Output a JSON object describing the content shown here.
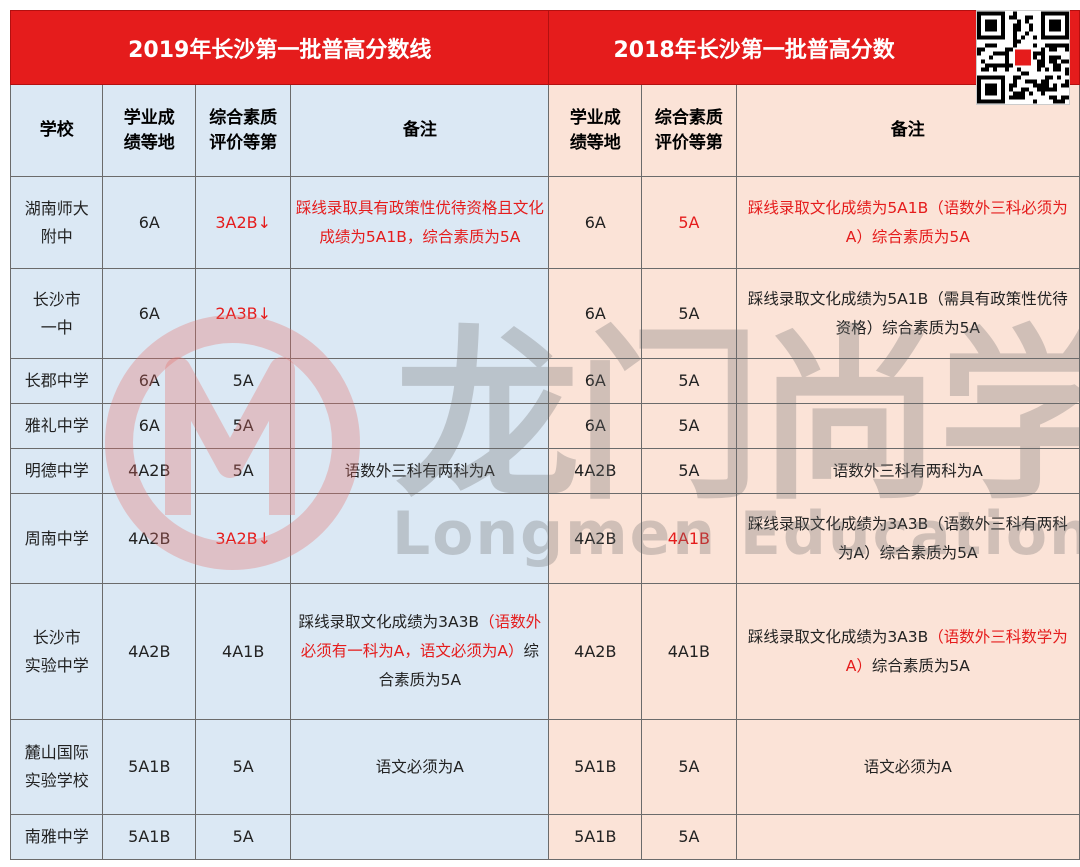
{
  "header": {
    "title_2019": "2019年长沙第一批普高分数线",
    "title_2018": "2018年长沙第一批普高分数"
  },
  "columns": {
    "school": "学校",
    "score_grade": "学业成\n绩等地",
    "quality_grade": "综合素质\n评价等第",
    "note": "备注"
  },
  "rows": [
    {
      "school": "湖南师大\n附中",
      "g2019": "6A",
      "q2019": "3A2B↓",
      "q2019_red": true,
      "n2019": [
        {
          "t": "踩线录取具有政策性优待资格且文化成绩为5A1B，综合素质为5A",
          "red": true
        }
      ],
      "g2018": "6A",
      "q2018": "5A",
      "q2018_red": true,
      "n2018": [
        {
          "t": "踩线录取文化成绩为5A1B（语数外三科必须为A）综合素质为5A",
          "red": true
        }
      ]
    },
    {
      "school": "长沙市\n一中",
      "g2019": "6A",
      "q2019": "2A3B↓",
      "q2019_red": true,
      "n2019": [],
      "g2018": "6A",
      "q2018": "5A",
      "q2018_red": false,
      "n2018": [
        {
          "t": "踩线录取文化成绩为5A1B（需具有政策性优待资格）综合素质为5A",
          "red": false
        }
      ]
    },
    {
      "school": "长郡中学",
      "g2019": "6A",
      "q2019": "5A",
      "q2019_red": false,
      "n2019": [],
      "g2018": "6A",
      "q2018": "5A",
      "q2018_red": false,
      "n2018": []
    },
    {
      "school": "雅礼中学",
      "g2019": "6A",
      "q2019": "5A",
      "q2019_red": false,
      "n2019": [],
      "g2018": "6A",
      "q2018": "5A",
      "q2018_red": false,
      "n2018": []
    },
    {
      "school": "明德中学",
      "g2019": "4A2B",
      "q2019": "5A",
      "q2019_red": false,
      "n2019": [
        {
          "t": "语数外三科有两科为A",
          "red": false
        }
      ],
      "g2018": "4A2B",
      "q2018": "5A",
      "q2018_red": false,
      "n2018": [
        {
          "t": "语数外三科有两科为A",
          "red": false
        }
      ]
    },
    {
      "school": "周南中学",
      "g2019": "4A2B",
      "q2019": "3A2B↓",
      "q2019_red": true,
      "n2019": [],
      "g2018": "4A2B",
      "q2018": "4A1B",
      "q2018_red": true,
      "n2018": [
        {
          "t": "踩线录取文化成绩为3A3B（语数外三科有两科为A）综合素质为5A",
          "red": false
        }
      ]
    },
    {
      "school": "长沙市\n实验中学",
      "g2019": "4A2B",
      "q2019": "4A1B",
      "q2019_red": false,
      "n2019": [
        {
          "t": "踩线录取文化成绩为3A3B",
          "red": false
        },
        {
          "t": "（语数外必须有一科为A，语文必须为A）",
          "red": true
        },
        {
          "t": "综合素质为5A",
          "red": false
        }
      ],
      "g2018": "4A2B",
      "q2018": "4A1B",
      "q2018_red": false,
      "n2018": [
        {
          "t": "踩线录取文化成绩为3A3B",
          "red": false
        },
        {
          "t": "（语数外三科数学为A）",
          "red": true
        },
        {
          "t": "综合素质为5A",
          "red": false
        }
      ]
    },
    {
      "school": "麓山国际\n实验学校",
      "g2019": "5A1B",
      "q2019": "5A",
      "q2019_red": false,
      "n2019": [
        {
          "t": "语文必须为A",
          "red": false
        }
      ],
      "g2018": "5A1B",
      "q2018": "5A",
      "q2018_red": false,
      "n2018": [
        {
          "t": "语文必须为A",
          "red": false
        }
      ]
    },
    {
      "school": "南雅中学",
      "g2019": "5A1B",
      "q2019": "5A",
      "q2019_red": false,
      "n2019": [],
      "g2018": "5A1B",
      "q2018": "5A",
      "q2018_red": false,
      "n2018": []
    }
  ],
  "watermark": {
    "cn": "龙门尚学",
    "en": "Longmen Education"
  },
  "colors": {
    "header_red": "#e51c1c",
    "left_bg": "#dbe8f4",
    "right_bg": "#fbe3d7",
    "highlight_red": "#e51c1c"
  }
}
